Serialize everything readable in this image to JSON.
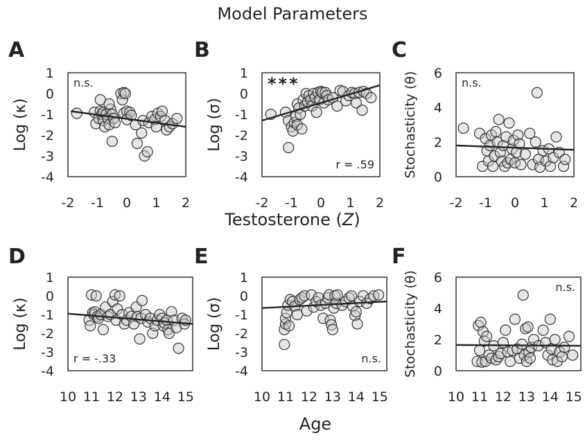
{
  "figure_title": "Model Parameters",
  "shared_x_labels": {
    "row1": "Testosterone (Z)",
    "row2": "Age"
  },
  "chart_data": [
    {
      "type": "scatter",
      "panel": "A",
      "ylabel": "Log (κ)",
      "xlim": [
        -2,
        2
      ],
      "ylim": [
        -4,
        1
      ],
      "xticks": [
        "-2",
        "-1",
        "0",
        "1",
        "2"
      ],
      "yticks": [
        "1",
        "0",
        "-1",
        "-2",
        "-3",
        "-4"
      ],
      "annotation": "n.s.",
      "annotation_pos": "top-left",
      "fit": [
        [
          -1.9,
          -0.85
        ],
        [
          2.0,
          -1.6
        ]
      ],
      "points": [
        [
          -1.7,
          -0.95
        ],
        [
          -1.1,
          -0.9
        ],
        [
          -1.05,
          -1.45
        ],
        [
          -0.95,
          -1.2
        ],
        [
          -0.9,
          -0.85
        ],
        [
          -0.85,
          -1.0
        ],
        [
          -0.8,
          -1.3
        ],
        [
          -0.8,
          -0.9
        ],
        [
          -0.75,
          -1.6
        ],
        [
          -0.7,
          -1.0
        ],
        [
          -0.65,
          -1.2
        ],
        [
          -0.6,
          -1.5
        ],
        [
          -0.55,
          -0.75
        ],
        [
          -0.5,
          -2.3
        ],
        [
          -0.5,
          -1.0
        ],
        [
          -0.45,
          -1.2
        ],
        [
          -0.4,
          -1.4
        ],
        [
          -0.9,
          -0.3
        ],
        [
          -0.6,
          -0.5
        ],
        [
          -0.2,
          0.0
        ],
        [
          -0.15,
          -0.3
        ],
        [
          -0.1,
          0.05
        ],
        [
          -0.05,
          0.0
        ],
        [
          -0.1,
          -0.95
        ],
        [
          0.0,
          -0.85
        ],
        [
          0.1,
          -0.9
        ],
        [
          0.0,
          -1.25
        ],
        [
          0.15,
          -1.05
        ],
        [
          0.3,
          -1.5
        ],
        [
          0.35,
          -2.4
        ],
        [
          0.5,
          -1.9
        ],
        [
          0.55,
          -1.3
        ],
        [
          0.6,
          -3.0
        ],
        [
          0.7,
          -2.8
        ],
        [
          0.75,
          -1.4
        ],
        [
          0.85,
          -1.1
        ],
        [
          0.95,
          -1.25
        ],
        [
          1.0,
          -1.6
        ],
        [
          1.05,
          -0.95
        ],
        [
          1.15,
          -1.1
        ],
        [
          1.2,
          -0.85
        ],
        [
          1.3,
          -1.3
        ],
        [
          1.35,
          -1.75
        ],
        [
          1.45,
          -1.6
        ],
        [
          1.55,
          -1.45
        ],
        [
          1.7,
          -1.2
        ]
      ]
    },
    {
      "type": "scatter",
      "panel": "B",
      "ylabel": "Log (σ)",
      "xlim": [
        -2,
        2
      ],
      "ylim": [
        -4,
        1
      ],
      "xticks": [
        "-2",
        "-1",
        "0",
        "1",
        "2"
      ],
      "yticks": [
        "1",
        "0",
        "-1",
        "-2",
        "-3",
        "-4"
      ],
      "annotation": "***",
      "annotation_pos": "top-left",
      "stat": "r = .59",
      "stat_pos": "bottom-right",
      "fit": [
        [
          -2.0,
          -1.3
        ],
        [
          2.0,
          0.4
        ]
      ],
      "points": [
        [
          -1.7,
          -1.0
        ],
        [
          -1.2,
          -0.9
        ],
        [
          -1.1,
          -1.3
        ],
        [
          -1.1,
          -2.6
        ],
        [
          -1.0,
          -1.6
        ],
        [
          -0.95,
          -1.8
        ],
        [
          -0.9,
          -1.4
        ],
        [
          -0.85,
          -1.1
        ],
        [
          -0.8,
          -0.5
        ],
        [
          -0.8,
          -1.5
        ],
        [
          -0.75,
          -0.7
        ],
        [
          -0.7,
          -1.0
        ],
        [
          -0.65,
          -1.7
        ],
        [
          -0.6,
          -0.3
        ],
        [
          -0.55,
          -0.6
        ],
        [
          -0.5,
          0.0
        ],
        [
          -0.45,
          -0.4
        ],
        [
          -0.4,
          -0.1
        ],
        [
          -0.35,
          -0.3
        ],
        [
          -0.3,
          -0.6
        ],
        [
          -0.25,
          0.0
        ],
        [
          -0.2,
          -0.2
        ],
        [
          -0.15,
          -0.9
        ],
        [
          -0.1,
          0.05
        ],
        [
          -0.05,
          -0.3
        ],
        [
          0.0,
          0.1
        ],
        [
          0.05,
          0.05
        ],
        [
          0.1,
          -0.45
        ],
        [
          0.15,
          0.05
        ],
        [
          0.2,
          -0.1
        ],
        [
          0.25,
          -0.3
        ],
        [
          0.4,
          -0.2
        ],
        [
          0.55,
          -0.6
        ],
        [
          0.65,
          0.15
        ],
        [
          0.75,
          0.1
        ],
        [
          0.85,
          -0.35
        ],
        [
          0.95,
          -0.1
        ],
        [
          1.05,
          0.05
        ],
        [
          1.15,
          0.0
        ],
        [
          1.2,
          -0.45
        ],
        [
          1.3,
          0.05
        ],
        [
          1.4,
          -0.8
        ],
        [
          1.45,
          0.1
        ],
        [
          1.55,
          0.0
        ],
        [
          1.7,
          -0.2
        ]
      ]
    },
    {
      "type": "scatter",
      "panel": "C",
      "ylabel": "Stochasticity (θ)",
      "xlim": [
        -2,
        2
      ],
      "ylim": [
        0,
        6
      ],
      "xticks": [
        "-2",
        "-1",
        "0",
        "1",
        "2"
      ],
      "yticks": [
        "6",
        "4",
        "2",
        "0"
      ],
      "annotation": "n.s.",
      "annotation_pos": "top-left",
      "fit": [
        [
          -2.0,
          1.8
        ],
        [
          2.0,
          1.55
        ]
      ],
      "points": [
        [
          -1.75,
          2.8
        ],
        [
          -1.2,
          2.5
        ],
        [
          -1.1,
          0.6
        ],
        [
          -1.0,
          2.2
        ],
        [
          -0.95,
          1.5
        ],
        [
          -0.9,
          0.9
        ],
        [
          -0.85,
          1.8
        ],
        [
          -0.8,
          2.4
        ],
        [
          -0.75,
          0.6
        ],
        [
          -0.7,
          1.2
        ],
        [
          -0.65,
          2.6
        ],
        [
          -0.6,
          2.0
        ],
        [
          -0.55,
          3.3
        ],
        [
          -0.5,
          1.4
        ],
        [
          -0.45,
          0.9
        ],
        [
          -0.4,
          1.8
        ],
        [
          -0.35,
          0.6
        ],
        [
          -0.3,
          2.3
        ],
        [
          -0.25,
          0.8
        ],
        [
          -0.2,
          3.1
        ],
        [
          -0.15,
          1.0
        ],
        [
          -0.1,
          1.6
        ],
        [
          -0.05,
          2.1
        ],
        [
          0.0,
          0.8
        ],
        [
          0.05,
          1.4
        ],
        [
          0.1,
          2.4
        ],
        [
          0.15,
          1.9
        ],
        [
          0.2,
          0.7
        ],
        [
          0.35,
          1.3
        ],
        [
          0.5,
          2.5
        ],
        [
          0.6,
          0.7
        ],
        [
          0.7,
          2.0
        ],
        [
          0.75,
          4.85
        ],
        [
          0.8,
          1.0
        ],
        [
          0.85,
          0.55
        ],
        [
          0.95,
          1.5
        ],
        [
          1.05,
          0.9
        ],
        [
          1.15,
          1.6
        ],
        [
          1.2,
          0.6
        ],
        [
          1.3,
          1.1
        ],
        [
          1.4,
          2.3
        ],
        [
          1.5,
          1.4
        ],
        [
          1.65,
          0.6
        ],
        [
          1.7,
          1.0
        ]
      ]
    },
    {
      "type": "scatter",
      "panel": "D",
      "ylabel": "Log (κ)",
      "xlim": [
        10,
        15.3
      ],
      "ylim": [
        -4,
        1
      ],
      "xticks": [
        "10",
        "11",
        "12",
        "13",
        "14",
        "15"
      ],
      "yticks": [
        "1",
        "0",
        "-1",
        "-2",
        "-3",
        "-4"
      ],
      "stat": "r = -.33",
      "stat_pos": "bottom-left",
      "fit": [
        [
          10.0,
          -0.95
        ],
        [
          15.3,
          -1.5
        ]
      ],
      "points": [
        [
          10.9,
          -1.3
        ],
        [
          10.95,
          -1.6
        ],
        [
          11.0,
          0.05
        ],
        [
          11.05,
          -0.9
        ],
        [
          11.1,
          -1.0
        ],
        [
          11.15,
          -0.85
        ],
        [
          11.2,
          0.0
        ],
        [
          11.25,
          -1.1
        ],
        [
          11.3,
          -1.2
        ],
        [
          11.4,
          -1.0
        ],
        [
          11.5,
          -1.8
        ],
        [
          11.6,
          -0.6
        ],
        [
          11.7,
          -1.1
        ],
        [
          11.8,
          -1.0
        ],
        [
          11.9,
          -0.3
        ],
        [
          12.0,
          0.05
        ],
        [
          12.05,
          -1.3
        ],
        [
          12.1,
          -0.7
        ],
        [
          12.2,
          0.0
        ],
        [
          12.3,
          -1.0
        ],
        [
          12.4,
          -1.5
        ],
        [
          12.5,
          -1.3
        ],
        [
          12.6,
          -0.9
        ],
        [
          12.7,
          -1.1
        ],
        [
          12.8,
          -1.5
        ],
        [
          12.9,
          -0.6
        ],
        [
          12.95,
          -1.1
        ],
        [
          13.05,
          -2.3
        ],
        [
          13.1,
          -1.2
        ],
        [
          13.15,
          -0.25
        ],
        [
          13.3,
          -1.0
        ],
        [
          13.4,
          -1.4
        ],
        [
          13.5,
          -1.2
        ],
        [
          13.6,
          -2.0
        ],
        [
          13.7,
          -1.6
        ],
        [
          13.8,
          -1.3
        ],
        [
          13.9,
          -1.0
        ],
        [
          14.0,
          -1.2
        ],
        [
          14.05,
          -1.6
        ],
        [
          14.1,
          -1.45
        ],
        [
          14.2,
          -1.3
        ],
        [
          14.25,
          -1.8
        ],
        [
          14.3,
          -2.0
        ],
        [
          14.4,
          -0.85
        ],
        [
          14.5,
          -1.3
        ],
        [
          14.6,
          -1.7
        ],
        [
          14.7,
          -2.8
        ],
        [
          14.85,
          -1.2
        ],
        [
          14.95,
          -1.5
        ],
        [
          15.0,
          -1.3
        ]
      ]
    },
    {
      "type": "scatter",
      "panel": "E",
      "ylabel": "Log (σ)",
      "xlim": [
        10,
        15.3
      ],
      "ylim": [
        -4,
        1
      ],
      "xticks": [
        "10",
        "11",
        "12",
        "13",
        "14",
        "15"
      ],
      "yticks": [
        "1",
        "0",
        "-1",
        "-2",
        "-3",
        "-4"
      ],
      "annotation": "n.s.",
      "annotation_pos": "bottom-right",
      "fit": [
        [
          10.0,
          -0.65
        ],
        [
          15.3,
          -0.3
        ]
      ],
      "points": [
        [
          10.95,
          -2.6
        ],
        [
          10.95,
          -1.8
        ],
        [
          11.0,
          -1.5
        ],
        [
          11.0,
          -1.2
        ],
        [
          11.05,
          -0.9
        ],
        [
          11.1,
          -0.5
        ],
        [
          11.15,
          -1.6
        ],
        [
          11.2,
          -0.2
        ],
        [
          11.3,
          -0.3
        ],
        [
          11.4,
          -0.55
        ],
        [
          11.5,
          -1.0
        ],
        [
          11.6,
          -0.2
        ],
        [
          11.7,
          -0.1
        ],
        [
          11.8,
          0.0
        ],
        [
          11.9,
          -0.8
        ],
        [
          12.1,
          0.05
        ],
        [
          12.2,
          -0.6
        ],
        [
          12.3,
          -0.3
        ],
        [
          12.4,
          -0.1
        ],
        [
          12.5,
          -0.5
        ],
        [
          12.6,
          -1.2
        ],
        [
          12.7,
          -0.4
        ],
        [
          12.8,
          -0.1
        ],
        [
          12.85,
          0.05
        ],
        [
          12.9,
          -1.3
        ],
        [
          12.95,
          -1.55
        ],
        [
          13.0,
          -1.8
        ],
        [
          13.05,
          -0.65
        ],
        [
          13.1,
          0.0
        ],
        [
          13.15,
          -0.4
        ],
        [
          13.2,
          0.05
        ],
        [
          13.4,
          -0.5
        ],
        [
          13.55,
          -0.3
        ],
        [
          13.7,
          -0.1
        ],
        [
          13.8,
          0.0
        ],
        [
          13.85,
          -0.55
        ],
        [
          13.95,
          -1.05
        ],
        [
          14.0,
          -0.85
        ],
        [
          14.05,
          -1.5
        ],
        [
          14.15,
          -0.3
        ],
        [
          14.3,
          0.0
        ],
        [
          14.45,
          -0.4
        ],
        [
          14.6,
          -0.15
        ],
        [
          14.75,
          0.0
        ],
        [
          14.95,
          0.05
        ]
      ]
    },
    {
      "type": "scatter",
      "panel": "F",
      "ylabel": "Stochasticity (θ)",
      "xlim": [
        10,
        15.3
      ],
      "ylim": [
        0,
        6
      ],
      "xticks": [
        "10",
        "11",
        "12",
        "13",
        "14",
        "15"
      ],
      "yticks": [
        "6",
        "4",
        "2",
        "0"
      ],
      "annotation": "n.s.",
      "annotation_pos": "top-right",
      "fit": [
        [
          10.0,
          1.65
        ],
        [
          15.3,
          1.6
        ]
      ],
      "points": [
        [
          10.9,
          0.6
        ],
        [
          10.95,
          2.9
        ],
        [
          11.0,
          1.3
        ],
        [
          11.05,
          3.1
        ],
        [
          11.1,
          0.55
        ],
        [
          11.15,
          2.5
        ],
        [
          11.2,
          1.9
        ],
        [
          11.25,
          0.6
        ],
        [
          11.3,
          2.2
        ],
        [
          11.4,
          1.0
        ],
        [
          11.5,
          0.8
        ],
        [
          11.6,
          1.6
        ],
        [
          11.7,
          0.7
        ],
        [
          11.8,
          0.9
        ],
        [
          11.9,
          1.1
        ],
        [
          12.0,
          1.8
        ],
        [
          12.1,
          2.6
        ],
        [
          12.2,
          1.2
        ],
        [
          12.3,
          0.6
        ],
        [
          12.4,
          1.3
        ],
        [
          12.5,
          3.3
        ],
        [
          12.6,
          1.4
        ],
        [
          12.7,
          0.8
        ],
        [
          12.8,
          1.7
        ],
        [
          12.85,
          4.85
        ],
        [
          12.9,
          1.0
        ],
        [
          12.95,
          2.7
        ],
        [
          13.0,
          0.6
        ],
        [
          13.05,
          2.8
        ],
        [
          13.1,
          1.2
        ],
        [
          13.15,
          0.8
        ],
        [
          13.2,
          1.5
        ],
        [
          13.3,
          2.0
        ],
        [
          13.5,
          1.6
        ],
        [
          13.7,
          2.6
        ],
        [
          13.8,
          1.8
        ],
        [
          13.9,
          1.0
        ],
        [
          14.0,
          3.3
        ],
        [
          14.05,
          1.4
        ],
        [
          14.1,
          0.7
        ],
        [
          14.2,
          2.0
        ],
        [
          14.3,
          0.6
        ],
        [
          14.4,
          1.2
        ],
        [
          14.5,
          0.9
        ],
        [
          14.6,
          1.5
        ],
        [
          14.8,
          2.2
        ],
        [
          14.95,
          1.0
        ]
      ]
    }
  ]
}
